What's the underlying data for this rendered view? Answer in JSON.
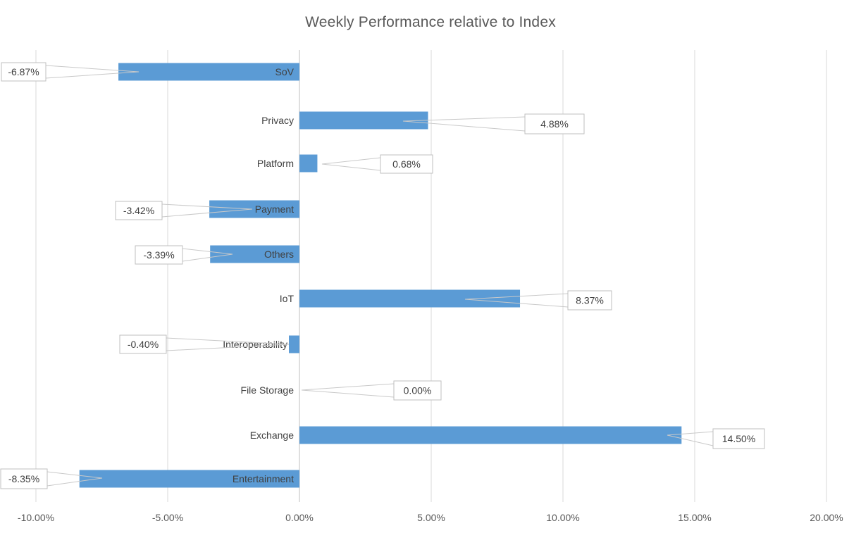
{
  "chart_data": {
    "type": "bar",
    "orientation": "horizontal",
    "title": "Weekly Performance relative to Index",
    "categories": [
      "SoV",
      "Privacy",
      "Platform",
      "Payment",
      "Others",
      "IoT",
      "Interoperability",
      "File Storage",
      "Exchange",
      "Entertainment"
    ],
    "values": [
      -6.87,
      4.88,
      0.68,
      -3.42,
      -3.39,
      8.37,
      -0.4,
      0.0,
      14.5,
      -8.35
    ],
    "data_labels": [
      "-6.87%",
      "4.88%",
      "0.68%",
      "-3.42%",
      "-3.39%",
      "8.37%",
      "-0.40%",
      "0.00%",
      "14.50%",
      "-8.35%"
    ],
    "xticks": [
      -10,
      -5,
      0,
      5,
      10,
      15,
      20
    ],
    "xtick_labels": [
      "-10.00%",
      "-5.00%",
      "0.00%",
      "5.00%",
      "10.00%",
      "15.00%",
      "20.00%"
    ],
    "xlim": [
      -10,
      20
    ],
    "grid": true,
    "legend": "none",
    "bar_color": "#5B9BD5",
    "gridline_color": "#D9D9D9",
    "axis_line_color": "#BFBFBF",
    "title_color": "#595959",
    "tick_color": "#595959",
    "label_color": "#404040",
    "callout_fill": "#FFFFFF",
    "callout_border_color": "#BFBFBF",
    "leader_line_color": "#C9C9C9",
    "background": "#FFFFFF"
  }
}
